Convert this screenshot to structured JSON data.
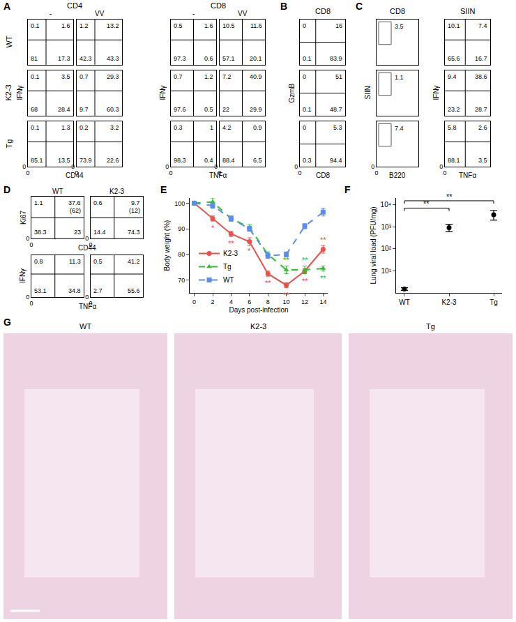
{
  "figure": {
    "row_labels": [
      "WT",
      "K2-3",
      "Tg"
    ]
  },
  "chart_data": [
    {
      "type": "flow",
      "panel": "A",
      "title": "CD4",
      "columns": [
        "-",
        "VV"
      ],
      "x_label": "CD44",
      "y_label": "IFNγ",
      "xlim": [
        0,
        100
      ],
      "ylim": [
        0,
        100
      ],
      "xticks": [
        0
      ],
      "yticks": [
        0
      ],
      "gate": {
        "x": 40,
        "y": 55
      },
      "rows": [
        [
          [
            0.1,
            1.6,
            81,
            17.3
          ],
          [
            1.2,
            13.2,
            42.3,
            43.3
          ]
        ],
        [
          [
            0.1,
            3.5,
            68,
            28.4
          ],
          [
            0.7,
            29.3,
            9.7,
            60.3
          ]
        ],
        [
          [
            0.1,
            1.3,
            85.1,
            13.5
          ],
          [
            0.2,
            3.2,
            73.9,
            22.6
          ]
        ]
      ]
    },
    {
      "type": "flow",
      "panel": "A",
      "title": "CD8",
      "columns": [
        "-",
        "VV"
      ],
      "x_label": "TNFα",
      "y_label": "IFNγ",
      "xlim": [
        0,
        100
      ],
      "ylim": [
        0,
        100
      ],
      "xticks": [
        0
      ],
      "yticks": [
        0
      ],
      "gate": {
        "x": 50,
        "y": 55
      },
      "rows": [
        [
          [
            0.5,
            1.6,
            97.3,
            0.6
          ],
          [
            10.5,
            11.6,
            57.1,
            20.1
          ]
        ],
        [
          [
            0.7,
            1.2,
            97.6,
            0.5
          ],
          [
            7.2,
            40.9,
            22,
            29.9
          ]
        ],
        [
          [
            0.3,
            1,
            98.3,
            0.4
          ],
          [
            4.2,
            0.9,
            88.4,
            6.5
          ]
        ]
      ]
    },
    {
      "type": "flow",
      "panel": "B",
      "title": "CD8",
      "x_label": "CD8",
      "y_label": "GzmB",
      "xlim": [
        0,
        100
      ],
      "ylim": [
        0,
        100
      ],
      "xticks": [
        0
      ],
      "yticks": [
        0
      ],
      "gate": {
        "x": 35,
        "y": 50
      },
      "rows": [
        [
          [
            0,
            16,
            0.1,
            83.9
          ]
        ],
        [
          [
            0,
            51,
            0.1,
            48.7
          ]
        ],
        [
          [
            0,
            5.3,
            0.3,
            94.4
          ]
        ]
      ]
    },
    {
      "type": "flow_gate",
      "panel": "C",
      "title": "CD8",
      "x_label": "B220",
      "y_label": "SIIN",
      "xlim": [
        0,
        100
      ],
      "ylim": [
        0,
        100
      ],
      "xticks": [
        0
      ],
      "yticks": [
        0
      ],
      "gate_box": {
        "x": [
          5,
          35
        ],
        "y": [
          45,
          95
        ]
      },
      "rows": [
        [
          3.5
        ],
        [
          1.1
        ],
        [
          7.4
        ]
      ]
    },
    {
      "type": "flow",
      "panel": "C",
      "title": "SIIN",
      "x_label": "TNFα",
      "y_label": "IFNγ",
      "xlim": [
        0,
        100
      ],
      "ylim": [
        0,
        100
      ],
      "xticks": [
        0
      ],
      "yticks": [
        0
      ],
      "gate": {
        "x": 45,
        "y": 55
      },
      "rows": [
        [
          [
            10.1,
            7.4,
            65.6,
            16.7
          ]
        ],
        [
          [
            9.4,
            38.6,
            23.2,
            28.7
          ]
        ],
        [
          [
            5.8,
            2.6,
            88.1,
            3.5
          ]
        ]
      ]
    },
    {
      "type": "flow",
      "panel": "D",
      "columns": [
        "WT",
        "K2-3"
      ],
      "x_label": "CD44",
      "y_label": "Ki67",
      "xlim": [
        0,
        100
      ],
      "ylim": [
        0,
        100
      ],
      "xticks": [
        0
      ],
      "yticks": [
        0
      ],
      "gate": {
        "x": 45,
        "y": 50
      },
      "rows": [
        [
          [
            1.1,
            37.6,
            38.3,
            23
          ],
          [
            0.6,
            9.7,
            14.4,
            74.3
          ]
        ]
      ],
      "notes": [
        [
          {
            "value": 62,
            "label": "(62)"
          },
          {
            "value": 12,
            "label": "(12)"
          }
        ]
      ]
    },
    {
      "type": "flow",
      "panel": "D",
      "x_label": "TNFα",
      "y_label": "IFNγ",
      "xlim": [
        0,
        100
      ],
      "ylim": [
        0,
        100
      ],
      "xticks": [
        0
      ],
      "yticks": [
        0
      ],
      "gate": {
        "x": 45,
        "y": 55
      },
      "rows": [
        [
          [
            0.8,
            11.3,
            53.1,
            34.8
          ],
          [
            0.5,
            41.2,
            2.7,
            55.6
          ]
        ]
      ]
    },
    {
      "type": "line",
      "panel": "E",
      "x_label": "Days post-infection",
      "y_label": "Body weight (%)",
      "x": [
        0,
        2,
        4,
        6,
        8,
        10,
        12,
        14
      ],
      "xlim": [
        -0.5,
        14.5
      ],
      "ylim": [
        65,
        102
      ],
      "xticks": [
        0,
        2,
        4,
        6,
        8,
        10,
        12,
        14
      ],
      "yticks": [
        70,
        80,
        90,
        100
      ],
      "grid": false,
      "legend": "lower left",
      "series": [
        {
          "name": "K2-3",
          "color": "#e8524a",
          "marker": "circle",
          "line_style": "solid",
          "values": [
            100,
            94,
            88,
            85,
            72.5,
            68,
            73.5,
            82
          ],
          "errors": [
            0.5,
            1,
            1,
            1.5,
            1,
            1,
            1,
            1.5
          ],
          "significance": [
            null,
            "*",
            "**",
            "*",
            "**",
            "**",
            "**",
            "**"
          ]
        },
        {
          "name": "Tg",
          "color": "#33bb33",
          "marker": "triangle",
          "line_style": "dashed",
          "values": [
            100,
            100.5,
            94,
            90.5,
            80,
            74,
            74,
            74.5
          ],
          "errors": [
            0.5,
            1.5,
            1,
            1,
            1,
            1.5,
            1.5,
            1
          ],
          "significance": [
            null,
            null,
            null,
            null,
            null,
            "**",
            "**",
            "**"
          ]
        },
        {
          "name": "WT",
          "color": "#5b8def",
          "marker": "square",
          "line_style": "dashed",
          "values": [
            100,
            99,
            94,
            90,
            79.5,
            80,
            91,
            96.5
          ],
          "errors": [
            0.5,
            1,
            1,
            1,
            1,
            1,
            1,
            1.5
          ],
          "significance": [
            null,
            null,
            null,
            null,
            null,
            null,
            null,
            null
          ]
        }
      ]
    },
    {
      "type": "scatter",
      "panel": "F",
      "y_label": "Lung viral load (PFU/mg)",
      "categories": [
        "WT",
        "K2-3",
        "Tg"
      ],
      "values": [
        1.5,
        900,
        3500
      ],
      "error_minus": [
        0.2,
        300,
        1500
      ],
      "error_plus": [
        0.2,
        400,
        2000
      ],
      "log": "y",
      "ylim": [
        1,
        20000
      ],
      "yticks": [
        {
          "value": 10,
          "label": "10¹"
        },
        {
          "value": 100,
          "label": "10²"
        },
        {
          "value": 1000,
          "label": "10³"
        },
        {
          "value": 10000,
          "label": "10⁴"
        }
      ],
      "grid": false,
      "color": "#000000",
      "marker": "circle",
      "comparisons": [
        {
          "from": "WT",
          "to": "K2-3",
          "label": "**",
          "y": 7000
        },
        {
          "from": "WT",
          "to": "Tg",
          "label": "**",
          "y": 15000
        }
      ]
    },
    {
      "type": "image",
      "panel": "G",
      "titles": [
        "WT",
        "K2-3",
        "Tg"
      ]
    }
  ]
}
